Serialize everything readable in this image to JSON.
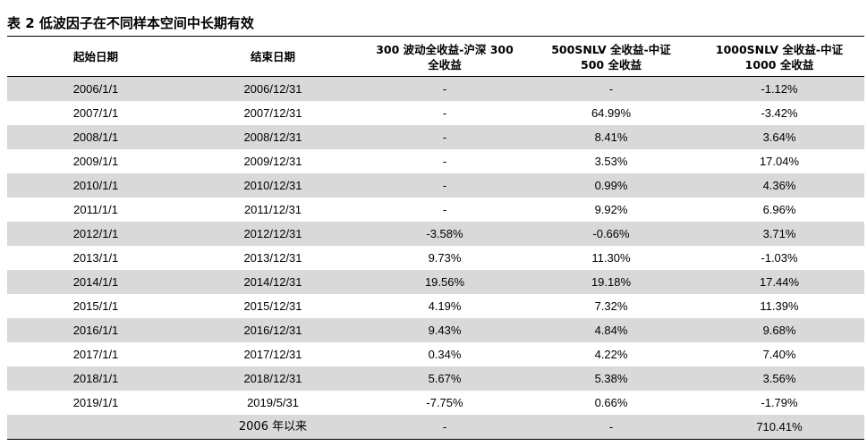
{
  "table": {
    "title": "表 2  低波因子在不同样本空间中长期有效",
    "headers": [
      "起始日期",
      "结束日期",
      "300 波动全收益-沪深 300\n全收益",
      "500SNLV 全收益-中证\n500 全收益",
      "1000SNLV 全收益-中证\n1000 全收益"
    ],
    "rows": [
      [
        "2006/1/1",
        "2006/12/31",
        "-",
        "-",
        "-1.12%"
      ],
      [
        "2007/1/1",
        "2007/12/31",
        "-",
        "64.99%",
        "-3.42%"
      ],
      [
        "2008/1/1",
        "2008/12/31",
        "-",
        "8.41%",
        "3.64%"
      ],
      [
        "2009/1/1",
        "2009/12/31",
        "-",
        "3.53%",
        "17.04%"
      ],
      [
        "2010/1/1",
        "2010/12/31",
        "-",
        "0.99%",
        "4.36%"
      ],
      [
        "2011/1/1",
        "2011/12/31",
        "-",
        "9.92%",
        "6.96%"
      ],
      [
        "2012/1/1",
        "2012/12/31",
        "-3.58%",
        "-0.66%",
        "3.71%"
      ],
      [
        "2013/1/1",
        "2013/12/31",
        "9.73%",
        "11.30%",
        "-1.03%"
      ],
      [
        "2014/1/1",
        "2014/12/31",
        "19.56%",
        "19.18%",
        "17.44%"
      ],
      [
        "2015/1/1",
        "2015/12/31",
        "4.19%",
        "7.32%",
        "11.39%"
      ],
      [
        "2016/1/1",
        "2016/12/31",
        "9.43%",
        "4.84%",
        "9.68%"
      ],
      [
        "2017/1/1",
        "2017/12/31",
        "0.34%",
        "4.22%",
        "7.40%"
      ],
      [
        "2018/1/1",
        "2018/12/31",
        "5.67%",
        "5.38%",
        "3.56%"
      ],
      [
        "2019/1/1",
        "2019/5/31",
        "-7.75%",
        "0.66%",
        "-1.79%"
      ],
      [
        "",
        "2006 年以来",
        "-",
        "-",
        "710.41%"
      ]
    ],
    "row_shade_color": "#d9d9d9"
  }
}
